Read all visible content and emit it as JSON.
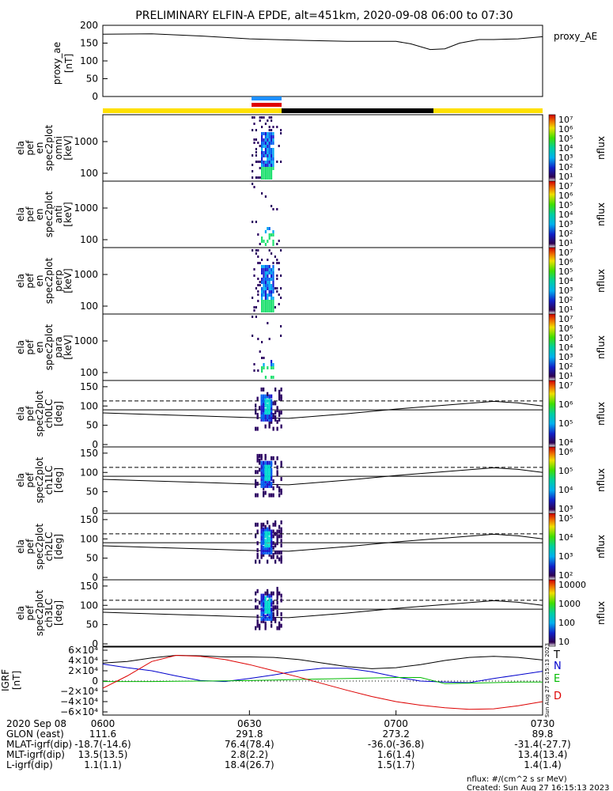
{
  "title": "PRELIMINARY ELFIN-A EPDE, alt=451km, 2020-09-08 06:00 to 07:30",
  "proxy_ae": {
    "ylabel_lines": [
      "proxy_ae",
      "[nT]"
    ],
    "legend": "proxy_AE",
    "ylim": [
      0,
      200
    ],
    "yticks": [
      0,
      50,
      100,
      150,
      200
    ],
    "chart_data": {
      "type": "line",
      "x_minutes_after_0600": [
        0,
        10,
        20,
        30,
        40,
        50,
        60,
        63,
        67,
        70,
        73,
        77,
        80,
        85,
        90
      ],
      "values": [
        175,
        176,
        170,
        162,
        158,
        155,
        155,
        148,
        132,
        134,
        150,
        160,
        160,
        162,
        168
      ]
    }
  },
  "bar": {
    "colors": {
      "yellow": "#FFE000",
      "black": "#000000",
      "blue": "#1E90FF",
      "red": "#E00000"
    }
  },
  "spec_panels": [
    {
      "ylabel_lines": [
        "ela",
        "pef",
        "en",
        "spec2plot",
        "omni",
        "[keV]"
      ],
      "yticks": [
        "1000",
        "100"
      ],
      "cb_ticks": [
        "10⁷",
        "10⁶",
        "10⁵",
        "10⁴",
        "10³",
        "10²",
        "10¹"
      ],
      "cb_label": "nflux"
    },
    {
      "ylabel_lines": [
        "ela",
        "pef",
        "en",
        "spec2plot",
        "anti",
        "[keV]"
      ],
      "yticks": [
        "1000",
        "100"
      ],
      "cb_ticks": [
        "10⁷",
        "10⁶",
        "10⁵",
        "10⁴",
        "10³",
        "10²",
        "10¹"
      ],
      "cb_label": "nflux"
    },
    {
      "ylabel_lines": [
        "ela",
        "pef",
        "en",
        "spec2plot",
        "perp",
        "[keV]"
      ],
      "yticks": [
        "1000",
        "100"
      ],
      "cb_ticks": [
        "10⁷",
        "10⁶",
        "10⁵",
        "10⁴",
        "10³",
        "10²",
        "10¹"
      ],
      "cb_label": "nflux"
    },
    {
      "ylabel_lines": [
        "ela",
        "pef",
        "en",
        "spec2plot",
        "para",
        "[keV]"
      ],
      "yticks": [
        "1000",
        "100"
      ],
      "cb_ticks": [
        "10⁷",
        "10⁶",
        "10⁵",
        "10⁴",
        "10³",
        "10²",
        "10¹"
      ],
      "cb_label": "nflux"
    }
  ],
  "pa_panels": [
    {
      "ylabel_lines": [
        "ela",
        "pef",
        "spec2plot",
        "ch0LC",
        "[deg]"
      ],
      "yticks": [
        "150",
        "100",
        "50",
        "0"
      ],
      "cb_ticks": [
        "10⁷",
        "10⁶",
        "10⁵",
        "10⁴"
      ],
      "cb_label": "nflux"
    },
    {
      "ylabel_lines": [
        "ela",
        "pef",
        "spec2plot",
        "ch1LC",
        "[deg]"
      ],
      "yticks": [
        "150",
        "100",
        "50",
        "0"
      ],
      "cb_ticks": [
        "10⁶",
        "10⁵",
        "10⁴",
        "10³"
      ],
      "cb_label": "nflux"
    },
    {
      "ylabel_lines": [
        "ela",
        "pef",
        "spec2plot",
        "ch2LC",
        "[deg]"
      ],
      "yticks": [
        "150",
        "100",
        "50",
        "0"
      ],
      "cb_ticks": [
        "10⁵",
        "10⁴",
        "10³",
        "10²"
      ],
      "cb_label": "nflux"
    },
    {
      "ylabel_lines": [
        "ela",
        "pef",
        "spec2plot",
        "ch3LC",
        "[deg]"
      ],
      "yticks": [
        "150",
        "100",
        "50",
        "0"
      ],
      "cb_ticks": [
        "10000",
        "1000",
        "100",
        "10"
      ],
      "cb_label": "nflux"
    }
  ],
  "igrf": {
    "ylabel_lines": [
      "IGRF",
      "[nT]"
    ],
    "yticks": [
      "6×10⁴",
      "4×10⁴",
      "2×10⁴",
      "0",
      "−2×10⁴",
      "−4×10⁴",
      "−6×10⁴"
    ],
    "legend": [
      {
        "label": "T",
        "color": "#000000"
      },
      {
        "label": "N",
        "color": "#0000CC"
      },
      {
        "label": "E",
        "color": "#00BB00"
      },
      {
        "label": "D",
        "color": "#DD0000"
      }
    ],
    "side_note": "Sun Aug 27 16:15:13 2023",
    "chart_data": {
      "type": "line",
      "ylim": [
        -60000,
        60000
      ],
      "x_minutes_after_0600": [
        0,
        5,
        10,
        15,
        20,
        25,
        30,
        35,
        40,
        45,
        50,
        55,
        60,
        65,
        70,
        75,
        80,
        85,
        90
      ],
      "series": [
        {
          "name": "T",
          "color": "#000000",
          "values": [
            35000,
            38000,
            45000,
            50000,
            49000,
            47000,
            47000,
            46000,
            42000,
            35000,
            28000,
            24000,
            26000,
            32000,
            40000,
            46000,
            48000,
            46000,
            41000
          ]
        },
        {
          "name": "N",
          "color": "#0000CC",
          "values": [
            33000,
            26000,
            20000,
            10000,
            1000,
            -1000,
            5000,
            12000,
            20000,
            25000,
            25000,
            18000,
            8000,
            0,
            -2000,
            -3000,
            5000,
            12000,
            19000
          ]
        },
        {
          "name": "E",
          "color": "#00BB00",
          "values": [
            -1000,
            -1000,
            -1000,
            -500,
            0,
            500,
            1000,
            2000,
            3000,
            4000,
            5000,
            6000,
            7000,
            7000,
            -5000,
            -4000,
            -3000,
            -2000,
            -2000
          ]
        },
        {
          "name": "D",
          "color": "#DD0000",
          "values": [
            -14000,
            10000,
            38000,
            50000,
            48000,
            42000,
            32000,
            20000,
            8000,
            -5000,
            -18000,
            -30000,
            -40000,
            -47000,
            -52000,
            -55000,
            -54000,
            -48000,
            -40000
          ]
        }
      ]
    }
  },
  "time_axis": {
    "row_labels": [
      "2020 Sep 08",
      "GLON (east)",
      "MLAT-igrf(dip)",
      "MLT-igrf(dip)",
      "L-igrf(dip)"
    ],
    "columns": [
      {
        "minutes": 0,
        "values": [
          "0600",
          "111.6",
          "-18.7(-14.6)",
          "13.5(13.5)",
          "1.1(1.1)"
        ]
      },
      {
        "minutes": 30,
        "values": [
          "0630",
          "291.8",
          "76.4(78.4)",
          "2.8(2.2)",
          "18.4(26.7)"
        ]
      },
      {
        "minutes": 60,
        "values": [
          "0700",
          "273.2",
          "-36.0(-36.8)",
          "1.6(1.4)",
          "1.5(1.7)"
        ]
      },
      {
        "minutes": 90,
        "values": [
          "0730",
          "89.8",
          "-31.4(-27.7)",
          "13.4(13.4)",
          "1.4(1.4)"
        ]
      }
    ]
  },
  "footer": {
    "units": "nflux: #/(cm^2 s sr MeV)",
    "created": "Created: Sun Aug 27 16:15:13 2023"
  }
}
